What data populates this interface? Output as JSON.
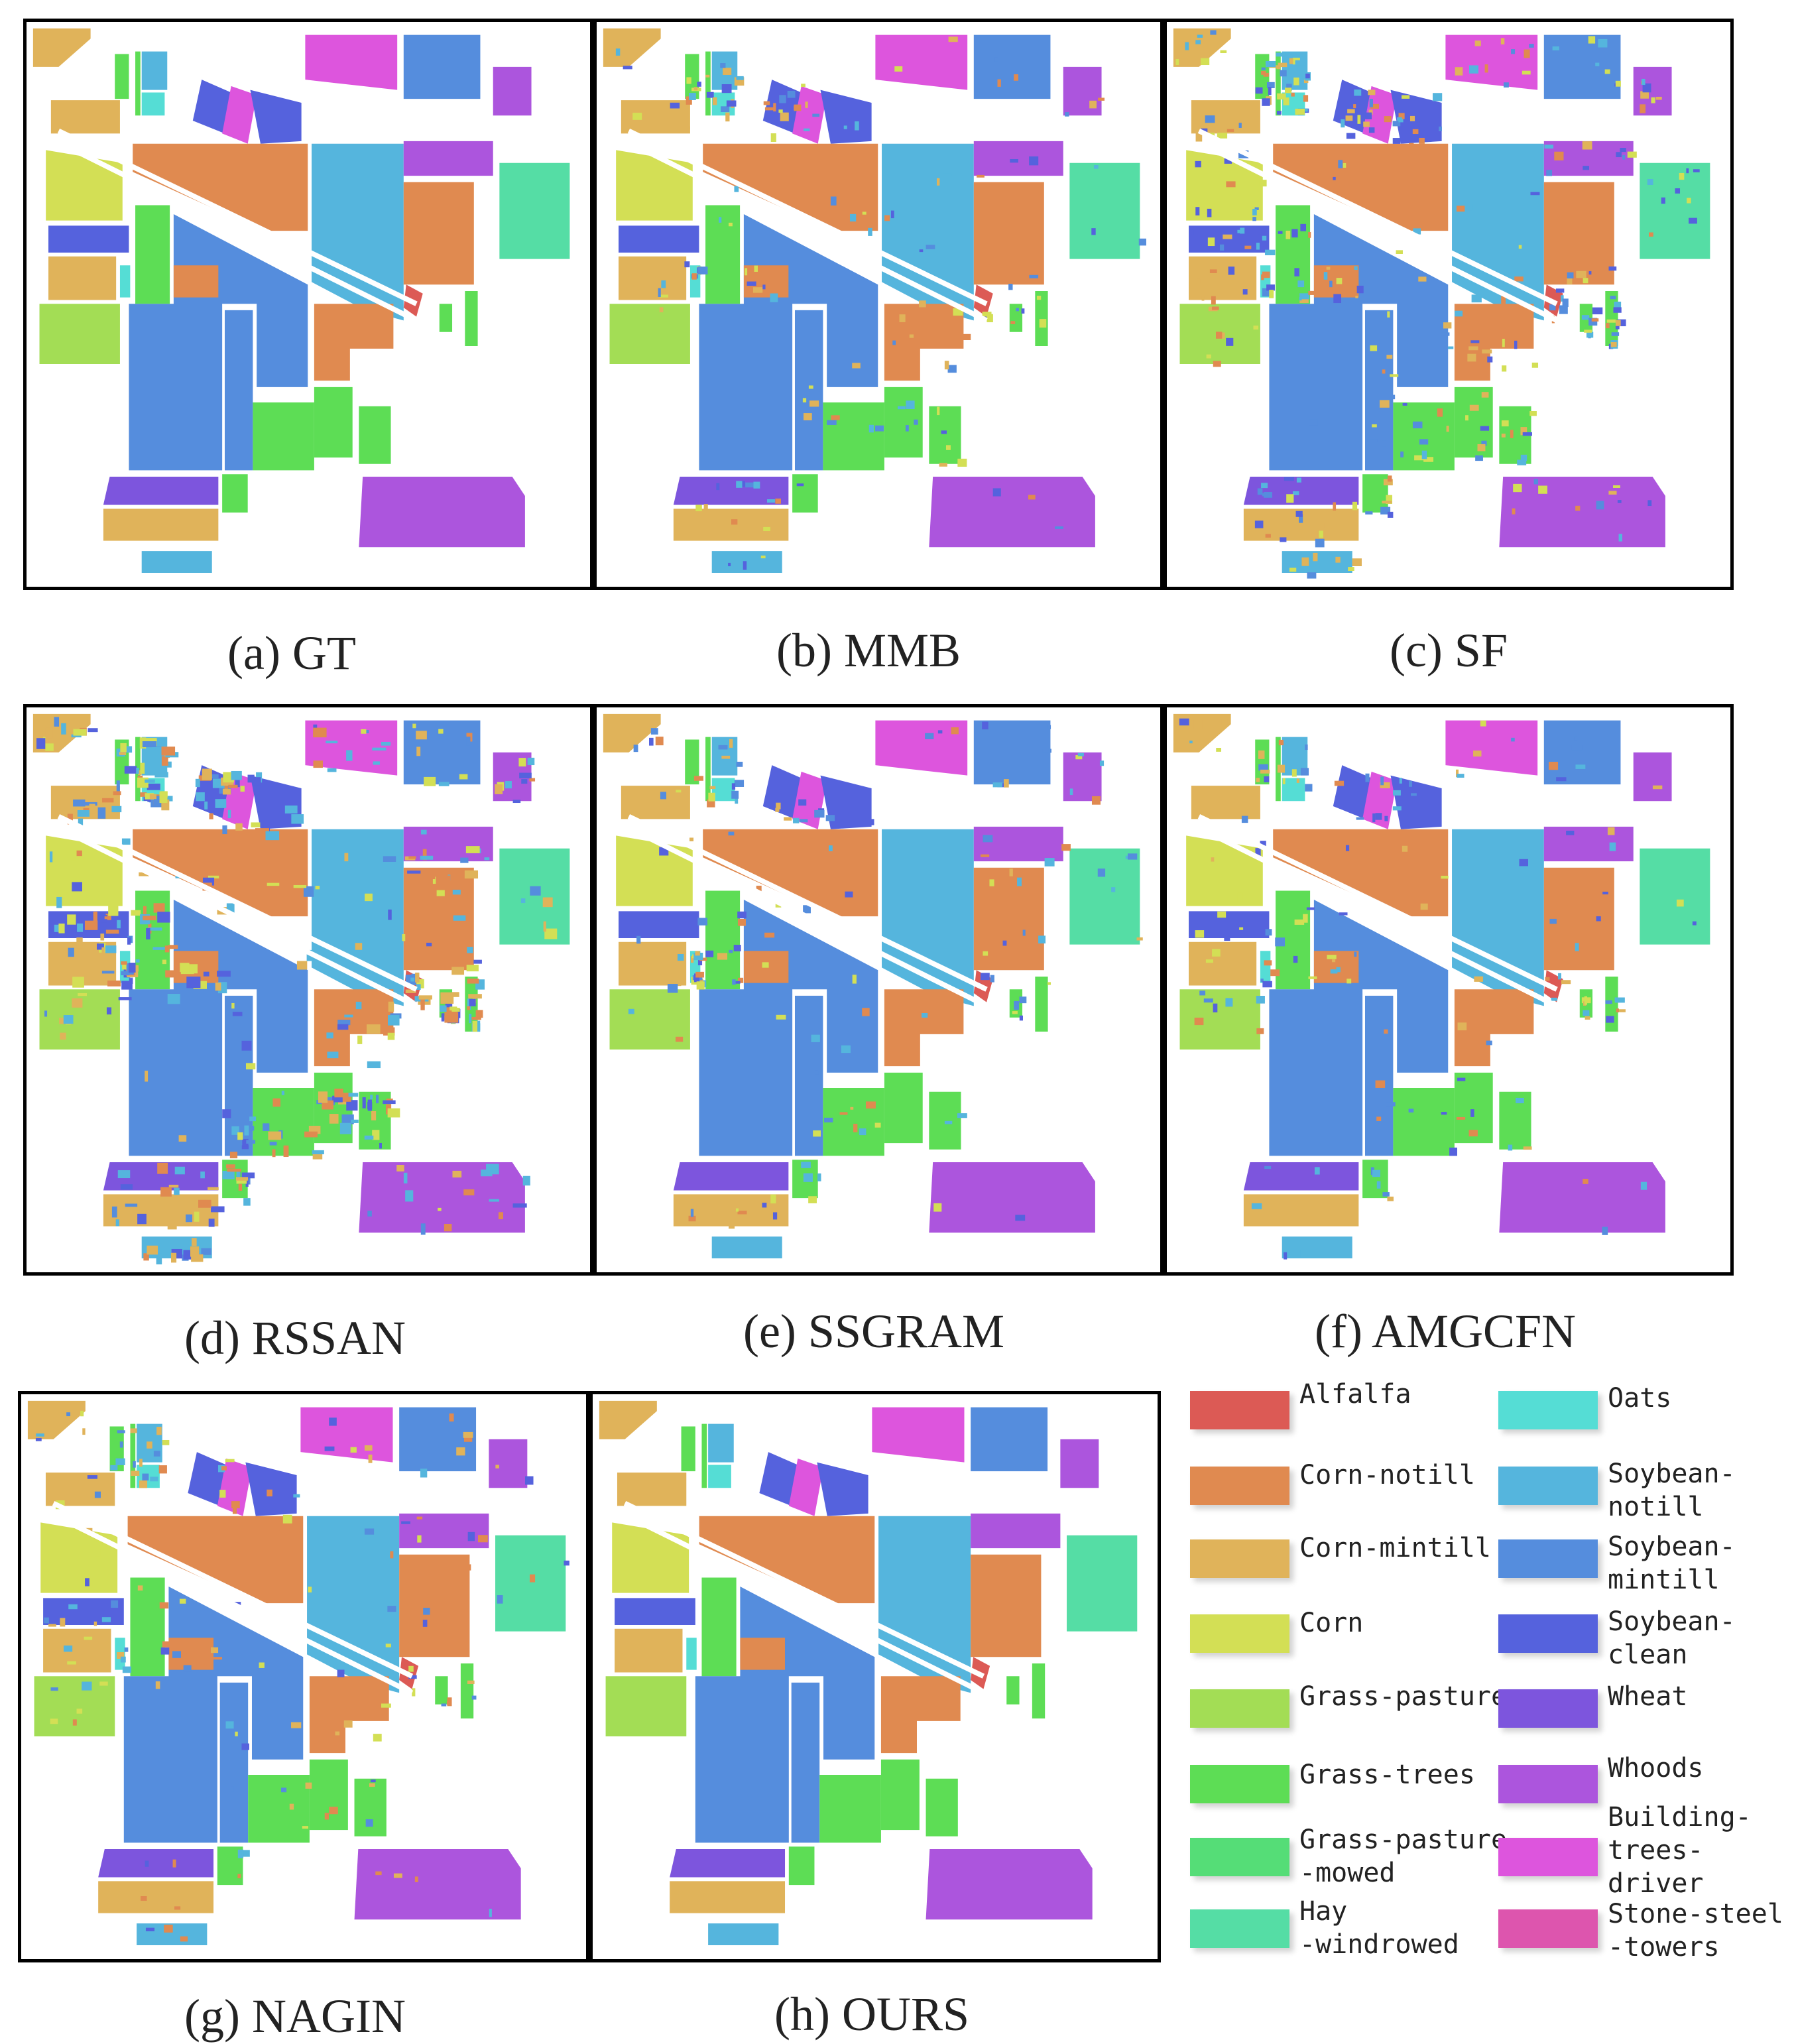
{
  "panels": [
    {
      "caption": "(a) GT",
      "variant": 0
    },
    {
      "caption": "(b) MMB",
      "variant": 1
    },
    {
      "caption": "(c) SF",
      "variant": 2
    },
    {
      "caption": "(d) RSSAN",
      "variant": 3
    },
    {
      "caption": "(e) SSGRAM",
      "variant": 1
    },
    {
      "caption": "(f) AMGCFN",
      "variant": 1
    },
    {
      "caption": "(g) NAGIN",
      "variant": 1
    },
    {
      "caption": "(h) OURS",
      "variant": 0
    }
  ],
  "legend": [
    {
      "label": "Alfalfa",
      "color": "#dc5a55"
    },
    {
      "label": "Corn-notill",
      "color": "#e08a50"
    },
    {
      "label": "Corn-mintill",
      "color": "#e0b35a"
    },
    {
      "label": "Corn",
      "color": "#d3df55"
    },
    {
      "label": "Grass-pasture",
      "color": "#a3dd55"
    },
    {
      "label": "Grass-trees",
      "color": "#5ddd55"
    },
    {
      "label": "Grass-pasture\n-mowed",
      "color": "#55dd77"
    },
    {
      "label": "Hay\n-windrowed",
      "color": "#55dda5"
    },
    {
      "label": "Oats",
      "color": "#55ddd5"
    },
    {
      "label": "Soybean-\nnotill",
      "color": "#55b5dd"
    },
    {
      "label": "Soybean-\nmintill",
      "color": "#558ddd"
    },
    {
      "label": "Soybean-\nclean",
      "color": "#5562dd"
    },
    {
      "label": "Wheat",
      "color": "#7d55dd"
    },
    {
      "label": "Whoods",
      "color": "#ac55dd"
    },
    {
      "label": "Building-\ntrees-\ndriver",
      "color": "#dd55dd"
    },
    {
      "label": "Stone-steel\n-towers",
      "color": "#dd55ae"
    }
  ]
}
